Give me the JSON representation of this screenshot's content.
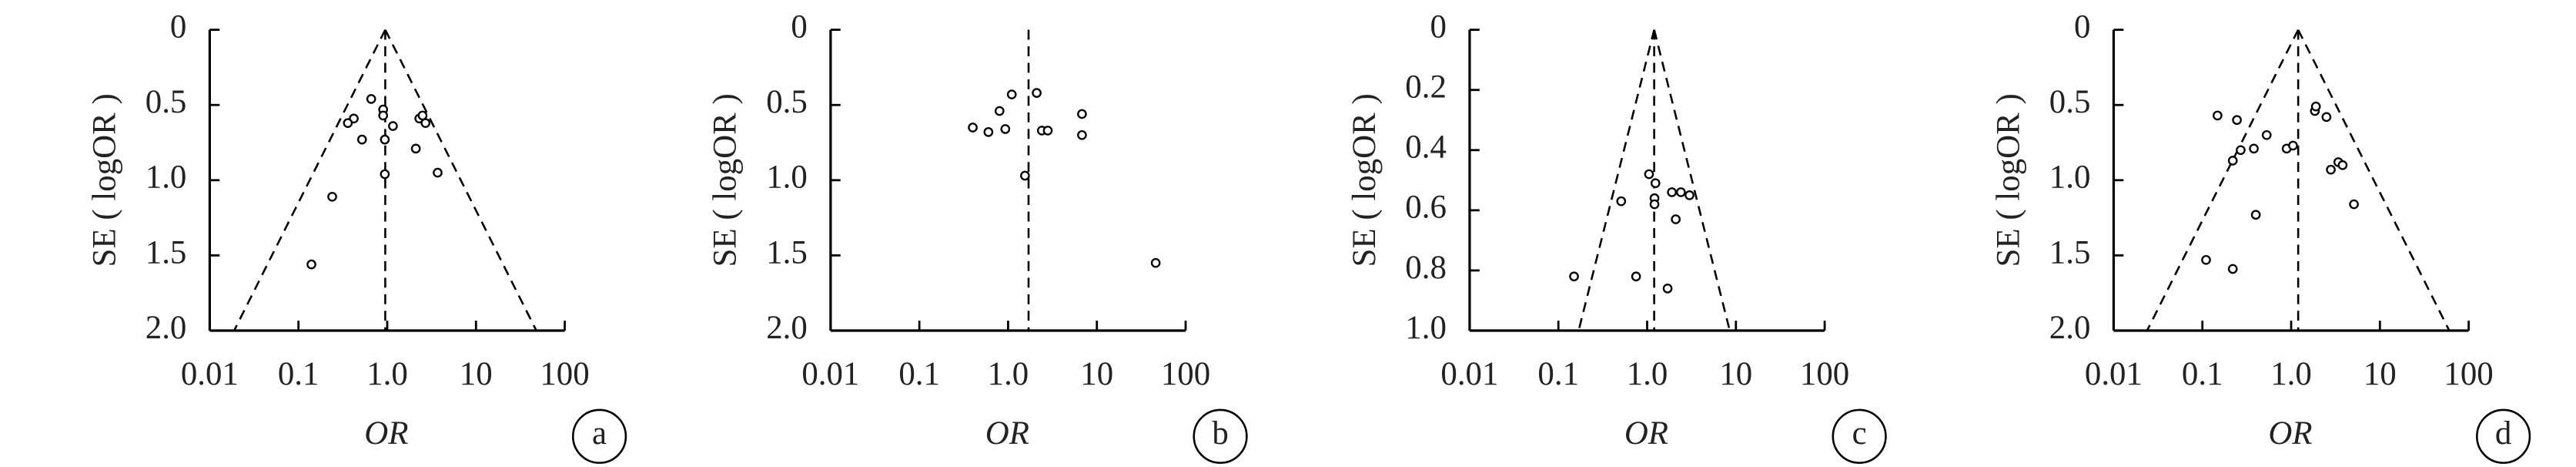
{
  "chart_data": [
    {
      "type": "scatter",
      "panel": "a",
      "xlabel": "OR",
      "ylabel": "SE ( logOR )",
      "color": "#000000",
      "x": [
        0.66,
        0.42,
        0.36,
        0.52,
        0.9,
        0.9,
        0.94,
        1.16,
        0.94,
        2.3,
        2.5,
        2.7,
        2.1,
        3.7,
        0.24,
        0.14
      ],
      "y": [
        0.46,
        0.59,
        0.62,
        0.73,
        0.53,
        0.57,
        0.73,
        0.64,
        0.96,
        0.59,
        0.57,
        0.62,
        0.79,
        0.95,
        1.11,
        1.56
      ],
      "log_x": true,
      "xlim": [
        0.01,
        100
      ],
      "xticks": [
        0.01,
        0.1,
        {
          "value": 1,
          "label": "1.0"
        },
        10,
        100
      ],
      "ylim": [
        0,
        2
      ],
      "y_inverted": true,
      "yticks": [
        0,
        0.5,
        {
          "value": 1,
          "label": "1.0"
        },
        1.5,
        {
          "value": 2,
          "label": "2.0"
        }
      ],
      "pooled_or": 0.95,
      "funnel": true
    },
    {
      "type": "scatter",
      "panel": "b",
      "xlabel": "OR",
      "ylabel": "SE ( logOR )",
      "color": "#000000",
      "x": [
        1.1,
        0.8,
        0.93,
        0.6,
        0.4,
        2.1,
        2.4,
        2.8,
        6.8,
        6.8,
        1.55,
        46
      ],
      "y": [
        0.43,
        0.54,
        0.66,
        0.68,
        0.65,
        0.42,
        0.67,
        0.67,
        0.56,
        0.7,
        0.97,
        1.55
      ],
      "log_x": true,
      "xlim": [
        0.01,
        100
      ],
      "xticks": [
        0.01,
        0.1,
        {
          "value": 1,
          "label": "1.0"
        },
        10,
        100
      ],
      "ylim": [
        0,
        2
      ],
      "y_inverted": true,
      "yticks": [
        0,
        0.5,
        {
          "value": 1,
          "label": "1.0"
        },
        1.5,
        {
          "value": 2,
          "label": "2.0"
        }
      ],
      "pooled_or": 1.7,
      "funnel": false
    },
    {
      "type": "scatter",
      "panel": "c",
      "xlabel": "OR",
      "ylabel": "SE ( logOR )",
      "color": "#000000",
      "x": [
        1.05,
        1.24,
        1.21,
        1.21,
        0.51,
        1.9,
        2.4,
        3.0,
        2.1,
        0.15,
        0.75,
        1.7
      ],
      "y": [
        0.48,
        0.51,
        0.56,
        0.58,
        0.57,
        0.54,
        0.54,
        0.55,
        0.63,
        0.82,
        0.82,
        0.86
      ],
      "log_x": true,
      "xlim": [
        0.01,
        100
      ],
      "xticks": [
        0.01,
        0.1,
        {
          "value": 1,
          "label": "1.0"
        },
        10,
        100
      ],
      "ylim": [
        0,
        1
      ],
      "y_inverted": true,
      "yticks": [
        0,
        0.2,
        0.4,
        0.6,
        0.8,
        {
          "value": 1,
          "label": "1.0"
        }
      ],
      "pooled_or": 1.2,
      "funnel": true
    },
    {
      "type": "scatter",
      "panel": "d",
      "xlabel": "OR",
      "ylabel": "SE ( logOR )",
      "color": "#000000",
      "x": [
        0.148,
        0.245,
        0.22,
        0.27,
        0.38,
        0.53,
        0.89,
        1.05,
        1.85,
        1.9,
        2.5,
        2.8,
        3.4,
        3.8,
        5.1,
        0.4,
        0.11,
        0.22
      ],
      "y": [
        0.57,
        0.6,
        0.87,
        0.8,
        0.79,
        0.7,
        0.79,
        0.77,
        0.54,
        0.51,
        0.58,
        0.93,
        0.88,
        0.9,
        1.16,
        1.23,
        1.53,
        1.59
      ],
      "log_x": true,
      "xlim": [
        0.01,
        100
      ],
      "xticks": [
        0.01,
        0.1,
        {
          "value": 1,
          "label": "1.0"
        },
        10,
        100
      ],
      "ylim": [
        0,
        2
      ],
      "y_inverted": true,
      "yticks": [
        0,
        0.5,
        {
          "value": 1,
          "label": "1.0"
        },
        1.5,
        {
          "value": 2,
          "label": "2.0"
        }
      ],
      "pooled_or": 1.2,
      "funnel": true
    }
  ]
}
